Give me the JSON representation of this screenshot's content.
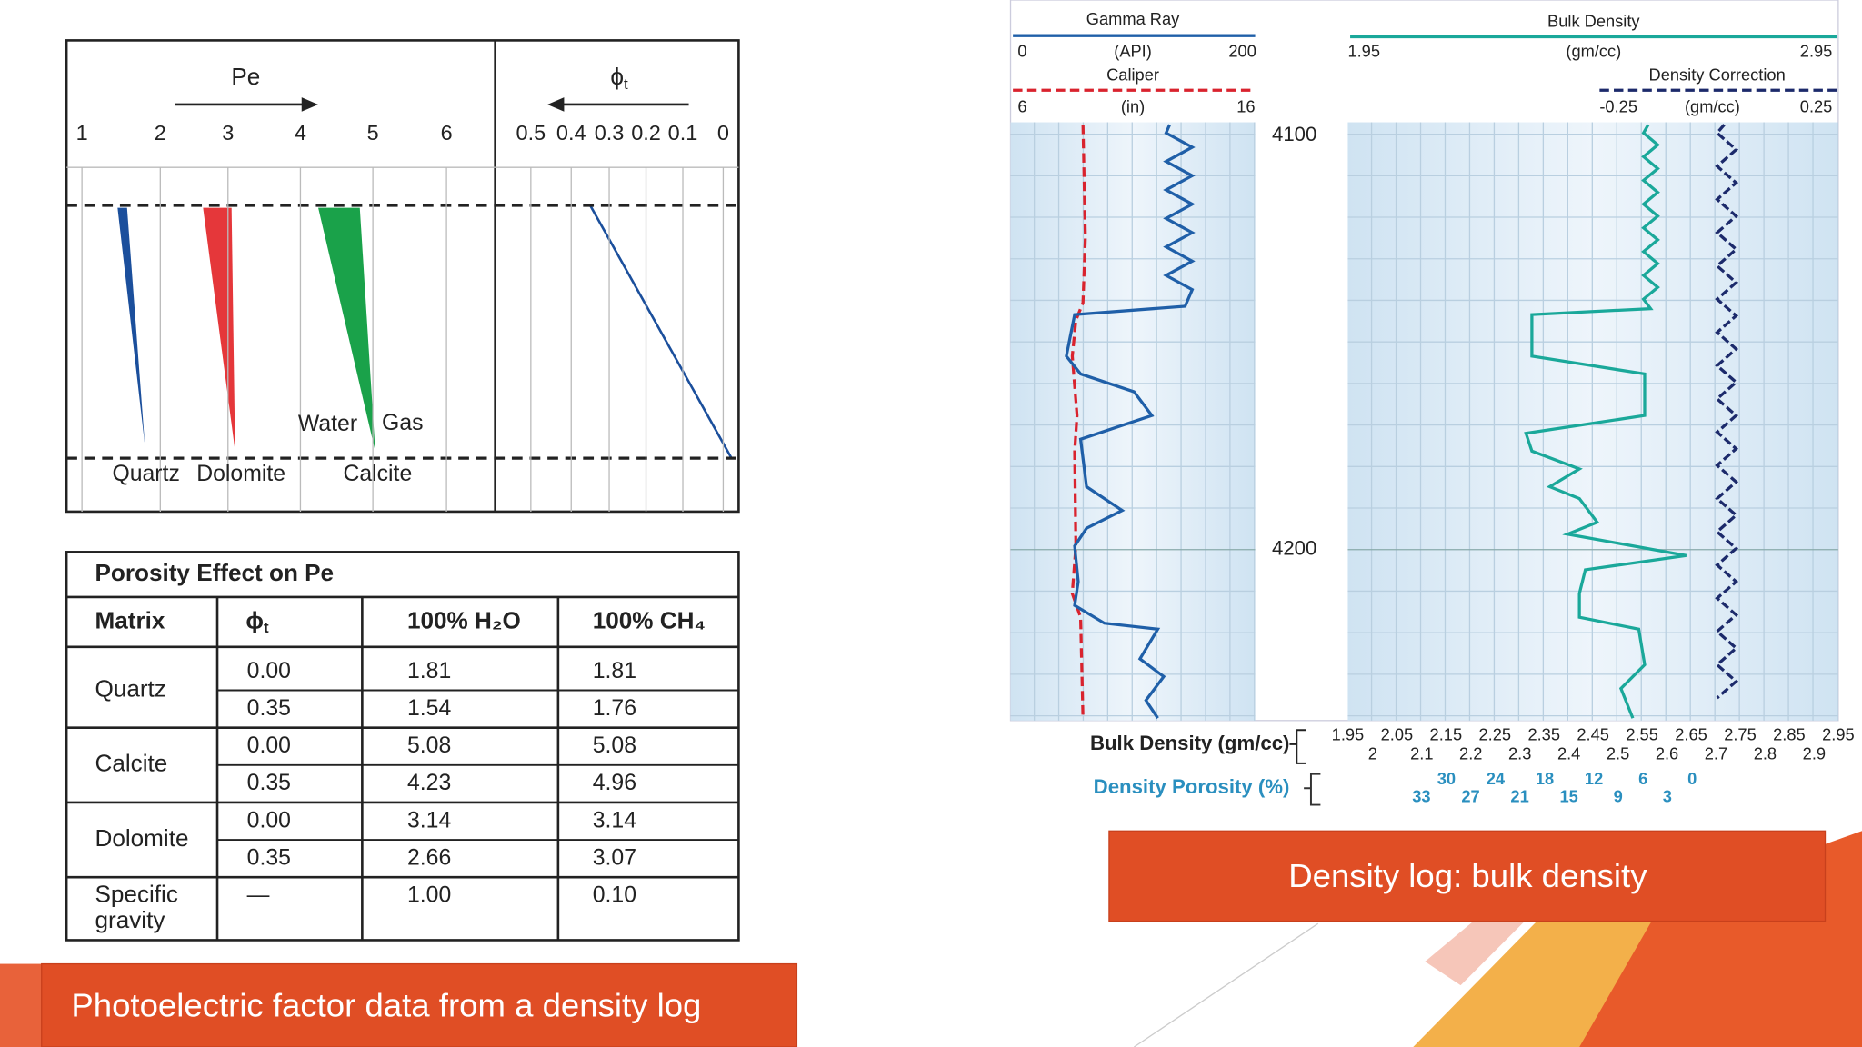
{
  "pe_figure": {
    "pe_title": "Pe",
    "pe_ticks": [
      "1",
      "2",
      "3",
      "4",
      "5",
      "6"
    ],
    "phi_symbol": "ϕ",
    "phi_subscript": "t",
    "phi_ticks": [
      "0.5",
      "0.4",
      "0.3",
      "0.2",
      "0.1",
      "0"
    ],
    "labels": {
      "water": "Water",
      "gas": "Gas",
      "quartz": "Quartz",
      "dolomite": "Dolomite",
      "calcite": "Calcite"
    }
  },
  "table": {
    "title": "Porosity Effect on Pe",
    "headers": {
      "matrix": "Matrix",
      "phi_symbol": "ϕ",
      "phi_subscript": "t",
      "h2o": "100% H₂O",
      "ch4": "100% CH₄"
    },
    "groups": [
      {
        "matrix": "Quartz",
        "rows": [
          [
            "0.00",
            "1.81",
            "1.81"
          ],
          [
            "0.35",
            "1.54",
            "1.76"
          ]
        ]
      },
      {
        "matrix": "Calcite",
        "rows": [
          [
            "0.00",
            "5.08",
            "5.08"
          ],
          [
            "0.35",
            "4.23",
            "4.96"
          ]
        ]
      },
      {
        "matrix": "Dolomite",
        "rows": [
          [
            "0.00",
            "3.14",
            "3.14"
          ],
          [
            "0.35",
            "2.66",
            "3.07"
          ]
        ]
      },
      {
        "matrix": "Specific gravity",
        "rows": [
          [
            "—",
            "1.00",
            "0.10"
          ]
        ]
      }
    ]
  },
  "log_figure": {
    "gamma_ray": "Gamma Ray",
    "gr_min": "0",
    "gr_unit": "(API)",
    "gr_max": "200",
    "caliper": "Caliper",
    "cal_min": "6",
    "cal_unit": "(in)",
    "cal_max": "16",
    "bulk_density": "Bulk Density",
    "bd_min": "1.95",
    "bd_unit": "(gm/cc)",
    "bd_max": "2.95",
    "density_correction": "Density Correction",
    "dc_min": "-0.25",
    "dc_unit": "(gm/cc)",
    "dc_max": "0.25",
    "depths": [
      "4100",
      "4200"
    ],
    "bd_scale_label": "Bulk Density (gm/cc)",
    "bd_scale_top": [
      "1.95",
      "2.05",
      "2.15",
      "2.25",
      "2.35",
      "2.45",
      "2.55",
      "2.65",
      "2.75",
      "2.85",
      "2.95"
    ],
    "bd_scale_bottom": [
      "2",
      "2.1",
      "2.2",
      "2.3",
      "2.4",
      "2.5",
      "2.6",
      "2.7",
      "2.8",
      "2.9"
    ],
    "porosity_label": "Density Porosity (%)",
    "porosity_top": [
      "30",
      "24",
      "18",
      "12",
      "6",
      "0"
    ],
    "porosity_bottom": [
      "33",
      "27",
      "21",
      "15",
      "9",
      "3"
    ]
  },
  "captions": {
    "left": "Photoelectric factor data from a density log",
    "right": "Density log: bulk density"
  }
}
